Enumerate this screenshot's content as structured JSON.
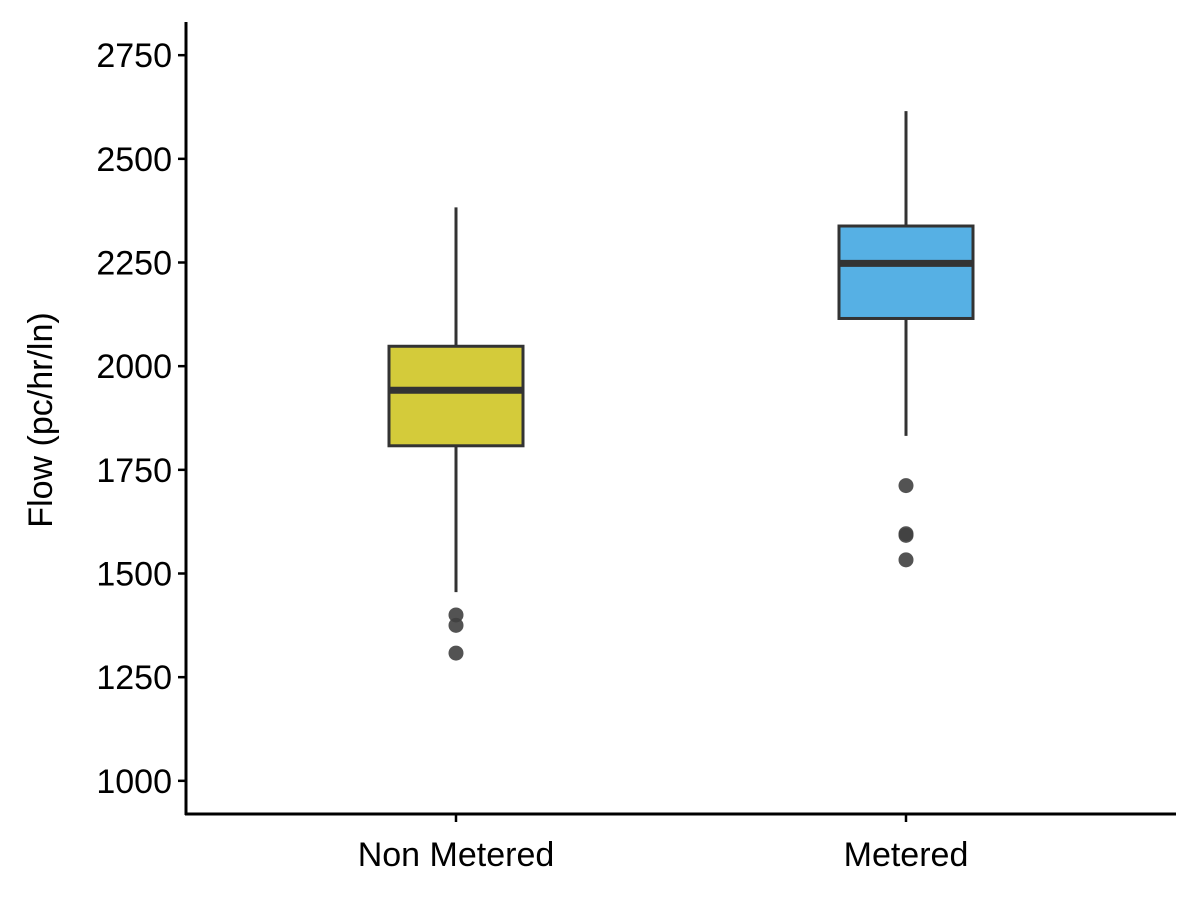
{
  "chart_data": {
    "type": "boxplot",
    "title": "",
    "xlabel": "",
    "ylabel": "Flow (pc/hr/ln)",
    "ylim": [
      920,
      2830
    ],
    "yticks": [
      1000,
      1250,
      1500,
      1750,
      2000,
      2250,
      2500,
      2750
    ],
    "ytick_labels": [
      "1000",
      "1250",
      "1500",
      "1750",
      "2000",
      "2250",
      "2500",
      "2750"
    ],
    "grid": false,
    "legend": "none",
    "categories": [
      "Non Metered",
      "Metered"
    ],
    "boxes": [
      {
        "category": "Non Metered",
        "color": "#D4CB3A",
        "whisker_low": 1455,
        "q1": 1808,
        "median": 1942,
        "q3": 2048,
        "whisker_high": 2383,
        "outliers": [
          1400,
          1375,
          1308
        ]
      },
      {
        "category": "Metered",
        "color": "#56B0E4",
        "whisker_low": 1832,
        "q1": 2115,
        "median": 2248,
        "q3": 2338,
        "whisker_high": 2615,
        "outliers": [
          1712,
          1596,
          1592,
          1533
        ]
      }
    ],
    "colors": {
      "outline": "#333333",
      "outlier": "#404040",
      "axis": "#000000"
    }
  }
}
